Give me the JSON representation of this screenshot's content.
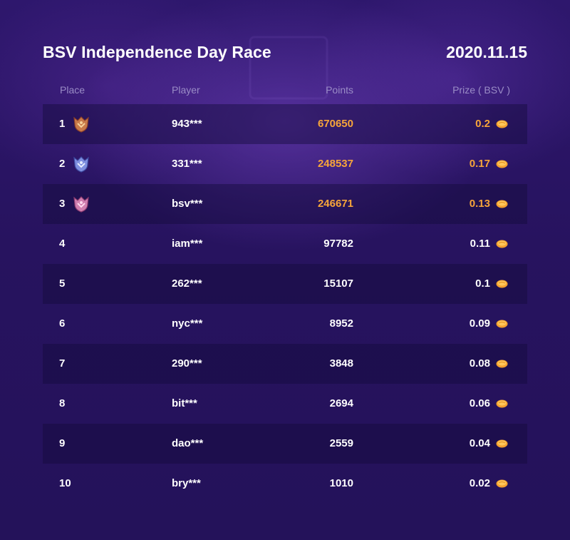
{
  "header": {
    "title": "BSV Independence Day Race",
    "date": "2020.11.15"
  },
  "columns": {
    "place": "Place",
    "player": "Player",
    "points": "Points",
    "prize": "Prize ( BSV )"
  },
  "rows": [
    {
      "place": "1",
      "player": "943***",
      "points": "670650",
      "prize": "0.2",
      "badge": "gold-medal-icon"
    },
    {
      "place": "2",
      "player": "331***",
      "points": "248537",
      "prize": "0.17",
      "badge": "silver-medal-icon"
    },
    {
      "place": "3",
      "player": "bsv***",
      "points": "246671",
      "prize": "0.13",
      "badge": "bronze-medal-icon"
    },
    {
      "place": "4",
      "player": "iam***",
      "points": "97782",
      "prize": "0.11"
    },
    {
      "place": "5",
      "player": "262***",
      "points": "15107",
      "prize": "0.1"
    },
    {
      "place": "6",
      "player": "nyc***",
      "points": "8952",
      "prize": "0.09"
    },
    {
      "place": "7",
      "player": "290***",
      "points": "3848",
      "prize": "0.08"
    },
    {
      "place": "8",
      "player": "bit***",
      "points": "2694",
      "prize": "0.06"
    },
    {
      "place": "9",
      "player": "dao***",
      "points": "2559",
      "prize": "0.04"
    },
    {
      "place": "10",
      "player": "bry***",
      "points": "1010",
      "prize": "0.02"
    }
  ],
  "colors": {
    "highlight": "#f7a53a",
    "background": "#26145f",
    "header_text": "#9a8cc6"
  },
  "icons": {
    "coin": "coin-icon"
  }
}
